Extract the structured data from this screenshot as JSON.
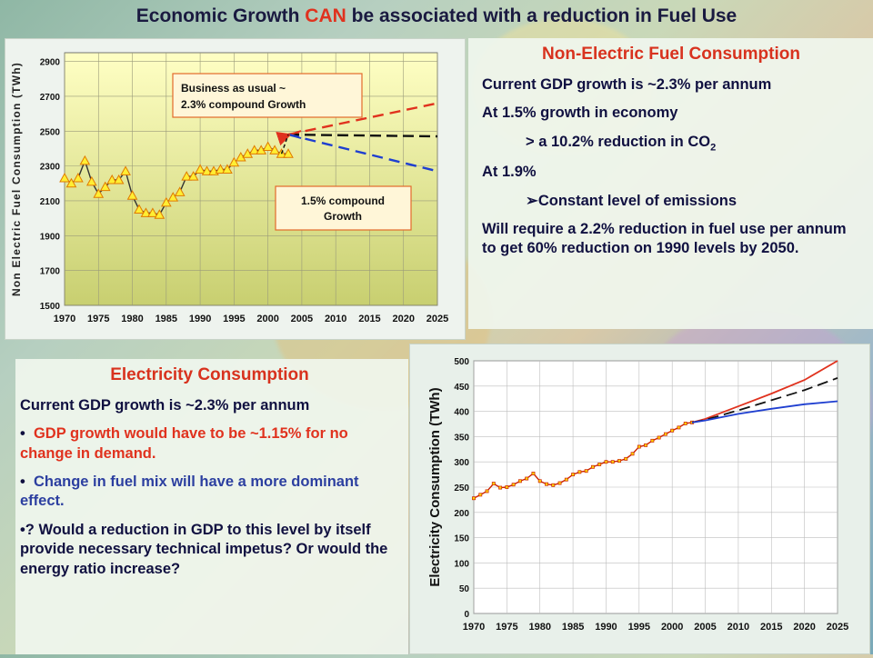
{
  "title": {
    "prefix": "Economic Growth ",
    "highlight": "CAN",
    "suffix": " be associated with a reduction in Fuel Use"
  },
  "non_electric_panel": {
    "heading": "Non-Electric Fuel Consumption",
    "line1": "Current GDP growth is ~2.3% per annum",
    "line2": "At 1.5% growth in economy",
    "line3_prefix": "> a 10.2% reduction in CO",
    "line3_sub": "2",
    "line4": "At 1.9%",
    "line5": "Constant level of emissions",
    "line6": "Will require a 2.2% reduction in fuel use per annum to get 60% reduction on 1990 levels by 2050."
  },
  "electric_panel": {
    "heading": "Electricity Consumption",
    "line1": "Current GDP growth is ~2.3% per annum",
    "bullet1": "GDP growth would have to be ~1.15% for no change in demand.",
    "bullet2": "Change in fuel mix will have a more dominant effect.",
    "bullet3": "? Would a reduction in GDP to this level by itself provide necessary technical impetus?  Or would the energy ratio increase?"
  },
  "colors": {
    "title_text": "#1a1a40",
    "highlight": "#e0321e",
    "bau_line": "#e0321e",
    "low_line": "#1f3fd0",
    "marker_fill": "#ffee33",
    "marker_stroke": "#e07a00",
    "plot_bg_top": "#ffffc0",
    "plot_bg_bottom": "#c8cf70"
  },
  "chart_data": [
    {
      "type": "line",
      "ylabel": "Non Electric Fuel Consumption (TWh)",
      "xlabel": "",
      "x_ticks": [
        1970,
        1975,
        1980,
        1985,
        1990,
        1995,
        2000,
        2005,
        2010,
        2015,
        2020,
        2025
      ],
      "y_ticks": [
        1500,
        1700,
        1900,
        2100,
        2300,
        2500,
        2700,
        2900
      ],
      "xlim": [
        1970,
        2025
      ],
      "ylim": [
        1500,
        2950
      ],
      "grid": true,
      "annotations": [
        {
          "text_line1": "Business as usual ~",
          "text_line2": "2.3% compound Growth"
        },
        {
          "text_line1": "1.5% compound",
          "text_line2": "Growth"
        }
      ],
      "series": [
        {
          "style": "historical",
          "x": [
            1970,
            1971,
            1972,
            1973,
            1974,
            1975,
            1976,
            1977,
            1978,
            1979,
            1980,
            1981,
            1982,
            1983,
            1984,
            1985,
            1986,
            1987,
            1988,
            1989,
            1990,
            1991,
            1992,
            1993,
            1994,
            1995,
            1996,
            1997,
            1998,
            1999,
            2000,
            2001,
            2002,
            2003
          ],
          "y": [
            2230,
            2200,
            2230,
            2330,
            2210,
            2140,
            2180,
            2220,
            2220,
            2270,
            2130,
            2050,
            2030,
            2030,
            2020,
            2090,
            2120,
            2150,
            2240,
            2240,
            2280,
            2270,
            2270,
            2280,
            2280,
            2320,
            2350,
            2370,
            2390,
            2390,
            2410,
            2390,
            2370,
            2370
          ]
        },
        {
          "style": "bau",
          "x": [
            2003,
            2025
          ],
          "y": [
            2480,
            2660
          ]
        },
        {
          "style": "flat",
          "x": [
            2003,
            2025
          ],
          "y": [
            2480,
            2470
          ]
        },
        {
          "style": "low",
          "x": [
            2003,
            2025
          ],
          "y": [
            2480,
            2270
          ]
        }
      ]
    },
    {
      "type": "line",
      "ylabel": "Electricity Consumption (TWh)",
      "xlabel": "",
      "x_ticks": [
        1970,
        1975,
        1980,
        1985,
        1990,
        1995,
        2000,
        2005,
        2010,
        2015,
        2020,
        2025
      ],
      "y_ticks": [
        0,
        50,
        100,
        150,
        200,
        250,
        300,
        350,
        400,
        450,
        500
      ],
      "xlim": [
        1970,
        2025
      ],
      "ylim": [
        0,
        500
      ],
      "grid": true,
      "series": [
        {
          "style": "historical",
          "x": [
            1970,
            1971,
            1972,
            1973,
            1974,
            1975,
            1976,
            1977,
            1978,
            1979,
            1980,
            1981,
            1982,
            1983,
            1984,
            1985,
            1986,
            1987,
            1988,
            1989,
            1990,
            1991,
            1992,
            1993,
            1994,
            1995,
            1996,
            1997,
            1998,
            1999,
            2000,
            2001,
            2002,
            2003
          ],
          "y": [
            228,
            235,
            242,
            257,
            249,
            250,
            255,
            262,
            267,
            277,
            262,
            256,
            254,
            258,
            265,
            275,
            280,
            282,
            290,
            295,
            300,
            300,
            302,
            306,
            316,
            330,
            333,
            342,
            348,
            355,
            362,
            368,
            376,
            378
          ]
        },
        {
          "style": "bau",
          "x": [
            2003,
            2005,
            2010,
            2015,
            2020,
            2025
          ],
          "y": [
            378,
            385,
            410,
            435,
            462,
            500
          ]
        },
        {
          "style": "flat",
          "x": [
            2003,
            2005,
            2010,
            2015,
            2020,
            2025
          ],
          "y": [
            378,
            383,
            402,
            422,
            442,
            466
          ]
        },
        {
          "style": "low",
          "x": [
            2003,
            2005,
            2010,
            2015,
            2020,
            2025
          ],
          "y": [
            378,
            382,
            395,
            405,
            414,
            420
          ]
        }
      ]
    }
  ]
}
